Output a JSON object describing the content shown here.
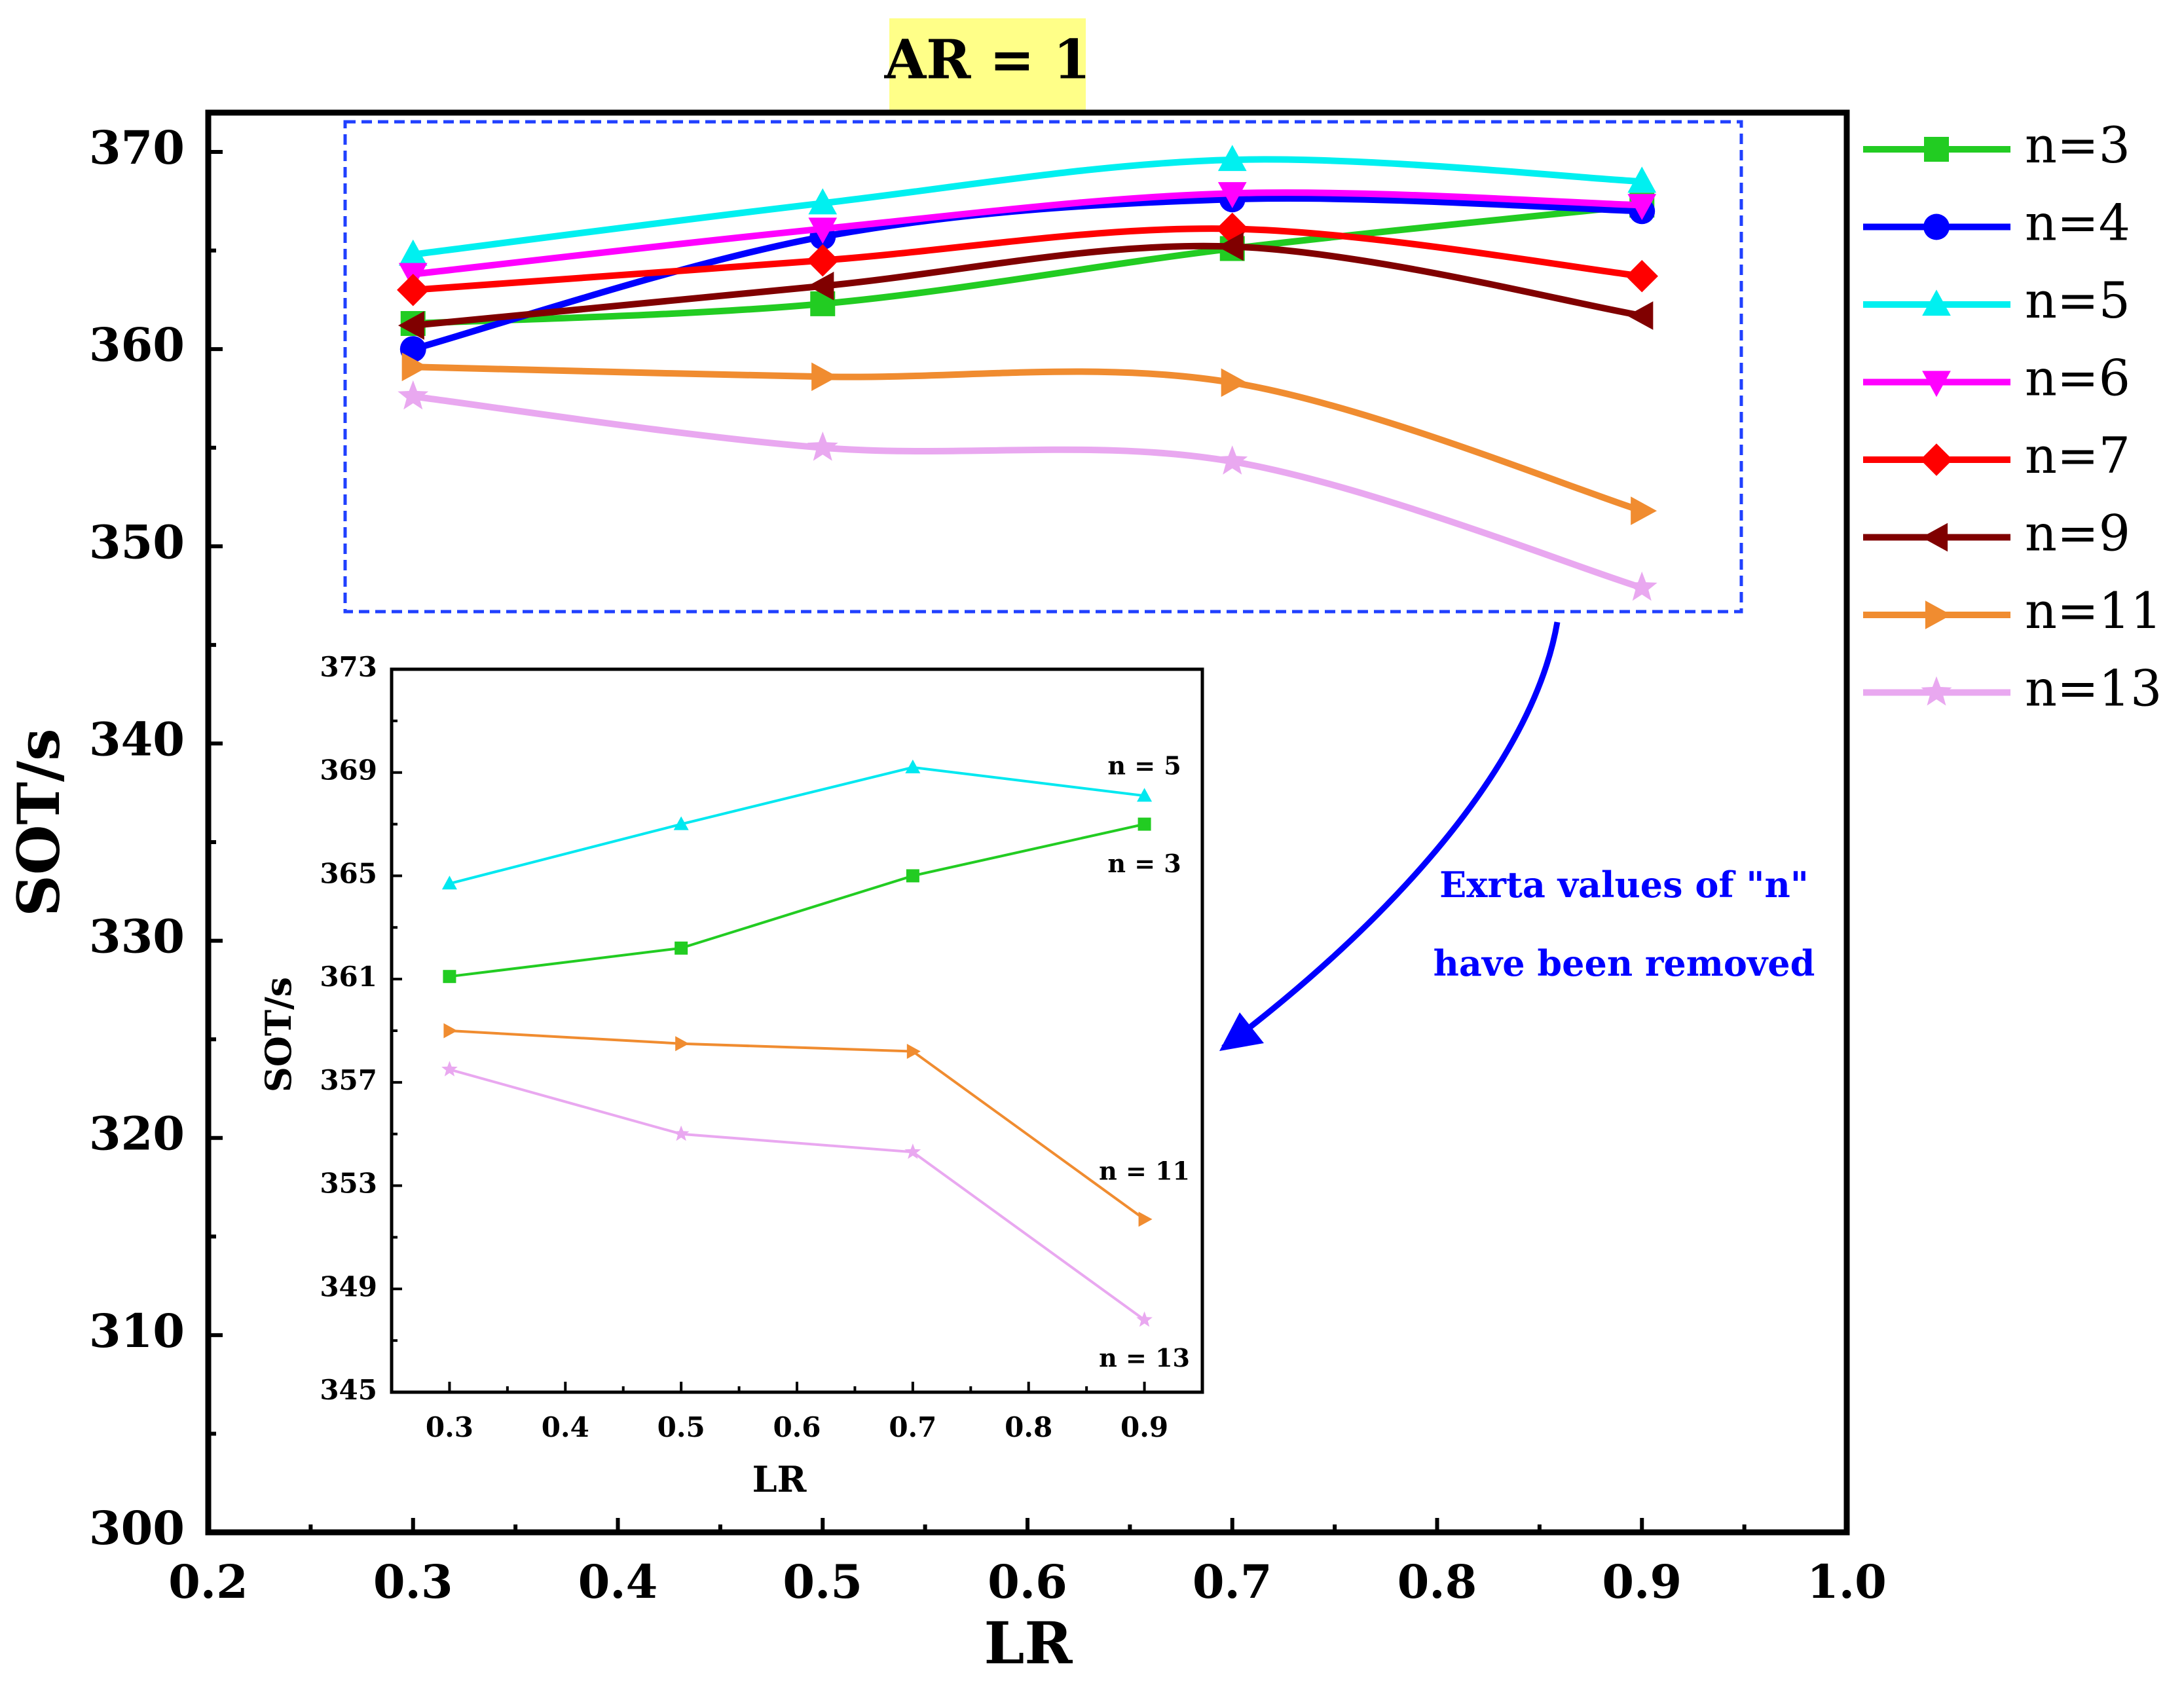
{
  "chart_data": [
    {
      "type": "line",
      "title": "AR = 1",
      "title_bg": "#ffff88",
      "xlabel": "LR",
      "ylabel": "SOT/s",
      "xlim": [
        0.2,
        1.0
      ],
      "ylim": [
        300,
        372
      ],
      "xticks": [
        0.2,
        0.3,
        0.4,
        0.5,
        0.6,
        0.7,
        0.8,
        0.9,
        1.0
      ],
      "xtick_labels": [
        "0.2",
        "0.3",
        "0.4",
        "0.5",
        "0.6",
        "0.7",
        "0.8",
        "0.9",
        "1.0"
      ],
      "yticks": [
        300,
        310,
        320,
        330,
        340,
        350,
        360,
        370
      ],
      "ytick_labels": [
        "300",
        "310",
        "320",
        "330",
        "340",
        "350",
        "360",
        "370"
      ],
      "x": [
        0.3,
        0.5,
        0.7,
        0.9
      ],
      "series": [
        {
          "name": "n=3",
          "label": "n=3",
          "color": "#22cc22",
          "marker": "square",
          "values": [
            361.3,
            362.3,
            365.1,
            367.3
          ]
        },
        {
          "name": "n=4",
          "label": "n=4",
          "color": "#0000ff",
          "marker": "circle",
          "values": [
            360.0,
            365.7,
            367.6,
            367.0
          ]
        },
        {
          "name": "n=5",
          "label": "n=5",
          "color": "#00f0f0",
          "marker": "triangle-up",
          "values": [
            364.8,
            367.4,
            369.6,
            368.5
          ]
        },
        {
          "name": "n=6",
          "label": "n=6",
          "color": "#ff00ff",
          "marker": "triangle-down",
          "values": [
            363.8,
            366.1,
            367.9,
            367.3
          ]
        },
        {
          "name": "n=7",
          "label": "n=7",
          "color": "#ff0000",
          "marker": "diamond",
          "values": [
            363.0,
            364.5,
            366.1,
            363.7
          ]
        },
        {
          "name": "n=9",
          "label": "n=9",
          "color": "#800000",
          "marker": "triangle-left",
          "values": [
            361.2,
            363.2,
            365.2,
            361.7
          ]
        },
        {
          "name": "n=11",
          "label": "n=11",
          "color": "#f08c30",
          "marker": "triangle-right",
          "values": [
            359.1,
            358.6,
            358.3,
            351.8
          ]
        },
        {
          "name": "n=13",
          "label": "n=13",
          "color": "#e9a8f0",
          "marker": "star",
          "values": [
            357.6,
            355.0,
            354.3,
            347.9
          ]
        }
      ],
      "legend_position": "right",
      "highlight_box_color": "#2040ff",
      "annotation": {
        "line1": "Exrta values of \"n\"",
        "line2": "have been removed",
        "color": "#0000ff"
      }
    },
    {
      "type": "line",
      "title": "",
      "xlabel": "LR",
      "ylabel": "SOT/s",
      "xlim": [
        0.25,
        0.95
      ],
      "ylim": [
        345,
        373
      ],
      "xticks": [
        0.3,
        0.4,
        0.5,
        0.6,
        0.7,
        0.8,
        0.9
      ],
      "xtick_labels": [
        "0.3",
        "0.4",
        "0.5",
        "0.6",
        "0.7",
        "0.8",
        "0.9"
      ],
      "yticks": [
        345,
        349,
        353,
        357,
        361,
        365,
        369,
        373
      ],
      "ytick_labels": [
        "345",
        "349",
        "353",
        "357",
        "361",
        "365",
        "369",
        "373"
      ],
      "x": [
        0.3,
        0.5,
        0.7,
        0.9
      ],
      "series": [
        {
          "name": "n = 5",
          "label": "n = 5",
          "color": "#00e8f0",
          "marker": "triangle-up",
          "values": [
            364.7,
            367.0,
            369.2,
            368.1
          ]
        },
        {
          "name": "n = 3",
          "label": "n = 3",
          "color": "#22cc22",
          "marker": "square",
          "values": [
            361.1,
            362.2,
            365.0,
            367.0
          ]
        },
        {
          "name": "n = 11",
          "label": "n = 11",
          "color": "#f08c30",
          "marker": "triangle-right",
          "values": [
            359.0,
            358.5,
            358.2,
            351.7
          ]
        },
        {
          "name": "n = 13",
          "label": "n = 13",
          "color": "#e9a8f0",
          "marker": "star",
          "values": [
            357.5,
            355.0,
            354.3,
            347.8
          ]
        }
      ],
      "legend_position": "inline-right"
    }
  ]
}
